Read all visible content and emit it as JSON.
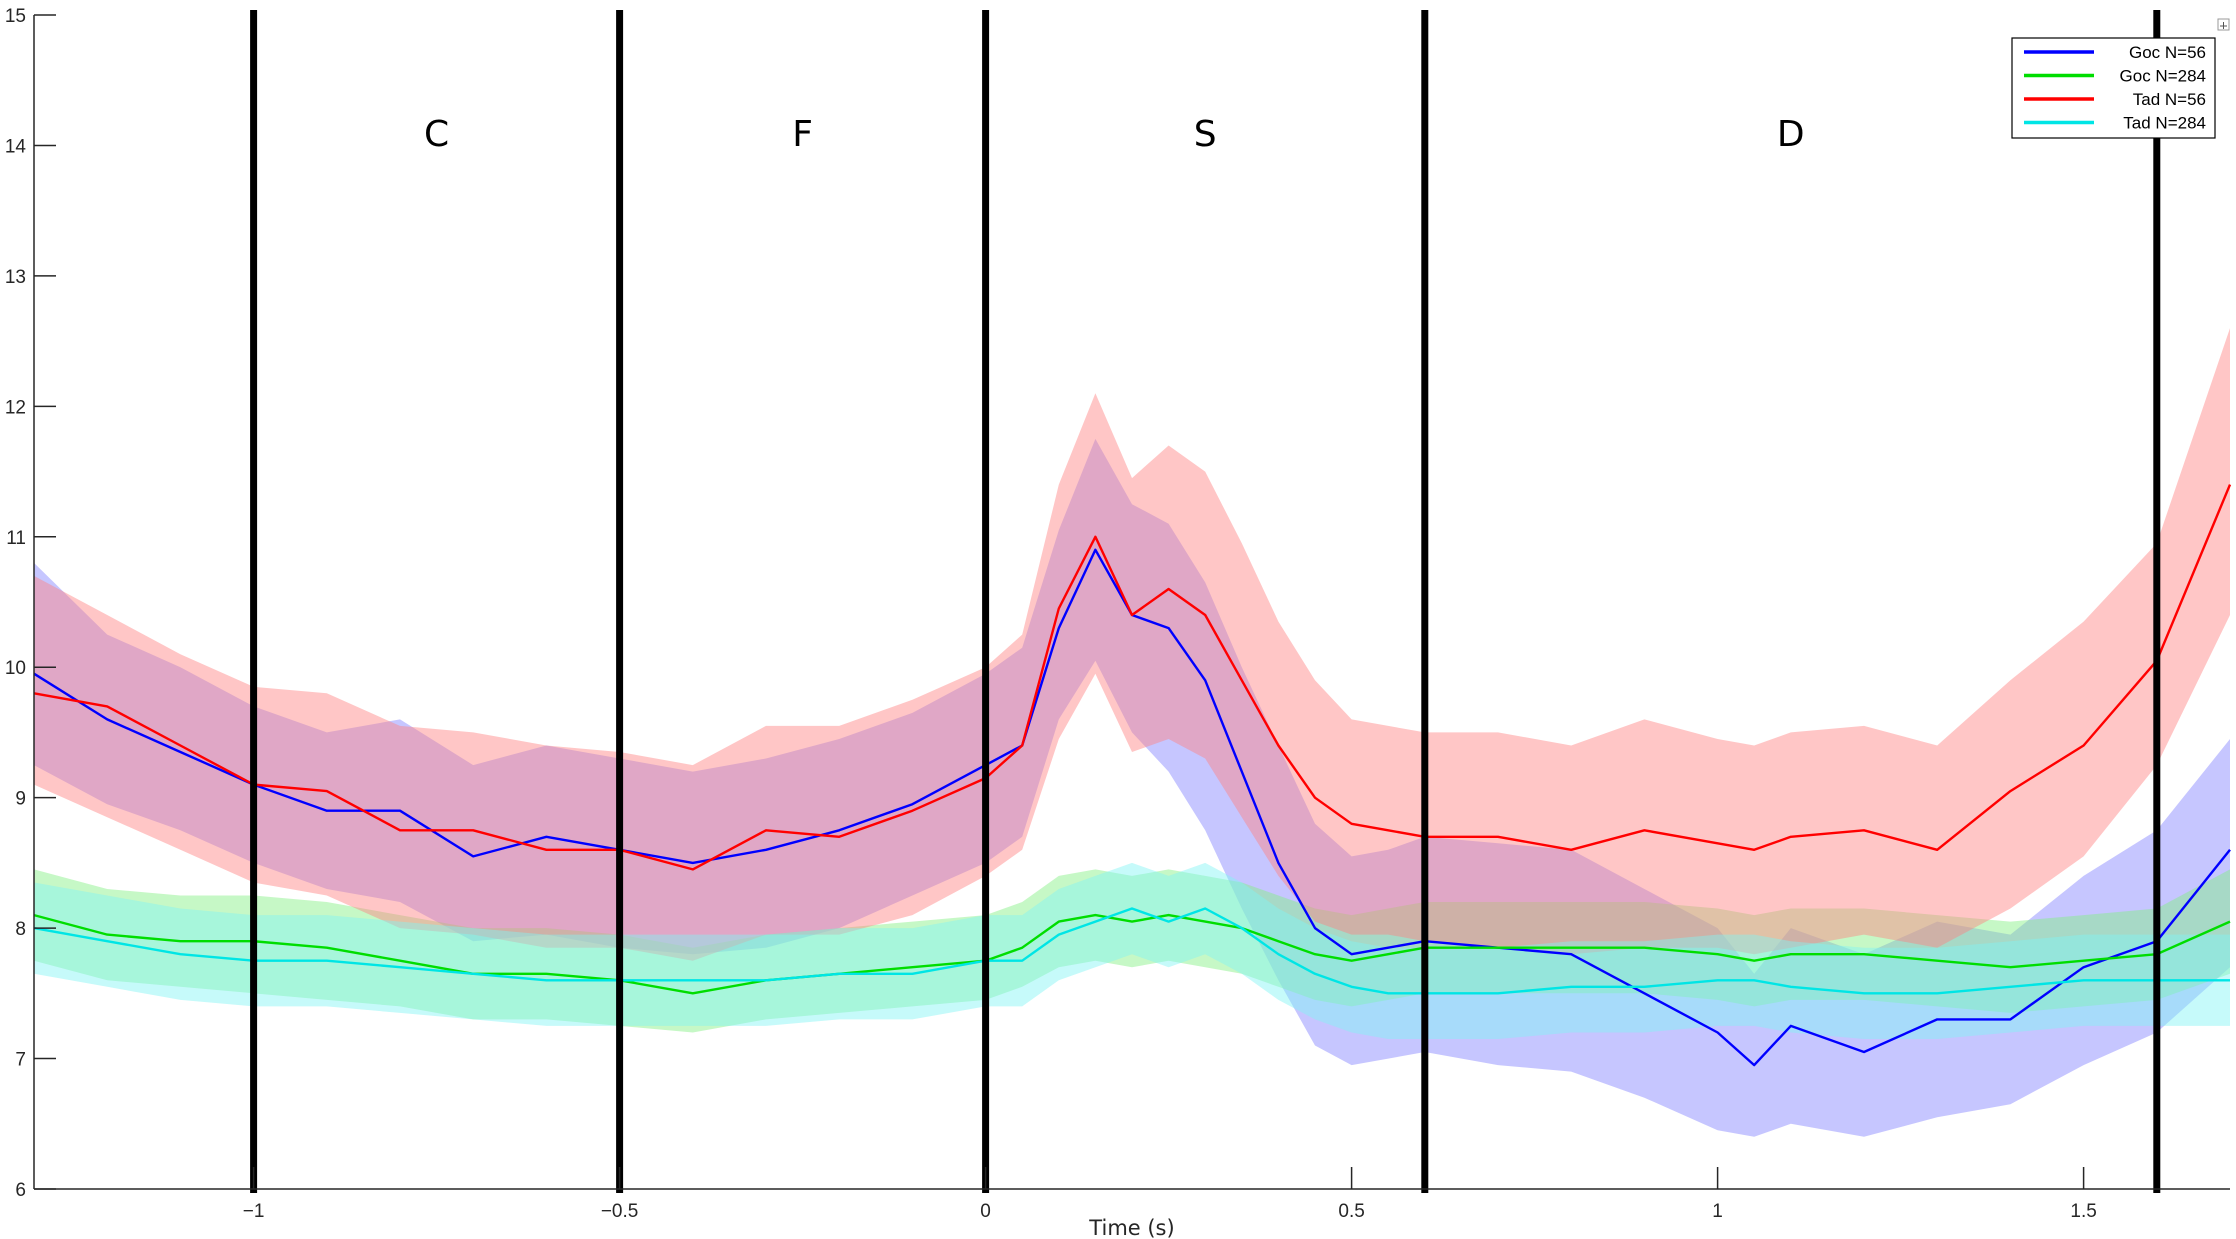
{
  "chart_data": {
    "type": "line",
    "title": "",
    "xlabel": "Time (s)",
    "ylabel": "",
    "xlim": [
      -1.3,
      1.7
    ],
    "ylim": [
      6,
      15
    ],
    "xticks": [
      -1,
      -0.5,
      0,
      0.5,
      1,
      1.5
    ],
    "xtick_labels": [
      "−1",
      "−0.5",
      "0",
      "0.5",
      "1",
      "1.5"
    ],
    "yticks": [
      6,
      7,
      8,
      9,
      10,
      11,
      12,
      13,
      14,
      15
    ],
    "ytick_labels": [
      "6",
      "7",
      "8",
      "9",
      "10",
      "11",
      "12",
      "13",
      "14",
      "15"
    ],
    "grid": false,
    "legend_position": "top-right",
    "phase_boundaries": [
      -1,
      -0.5,
      0,
      0.6,
      1.6
    ],
    "phases": [
      {
        "label": "C",
        "x": -0.75
      },
      {
        "label": "F",
        "x": -0.25
      },
      {
        "label": "S",
        "x": 0.3
      },
      {
        "label": "D",
        "x": 1.1
      }
    ],
    "x": [
      -1.3,
      -1.2,
      -1.1,
      -1.0,
      -0.9,
      -0.8,
      -0.7,
      -0.6,
      -0.5,
      -0.4,
      -0.3,
      -0.2,
      -0.1,
      0.0,
      0.05,
      0.1,
      0.15,
      0.2,
      0.25,
      0.3,
      0.35,
      0.4,
      0.45,
      0.5,
      0.55,
      0.6,
      0.7,
      0.8,
      0.9,
      1.0,
      1.05,
      1.1,
      1.2,
      1.3,
      1.4,
      1.5,
      1.6,
      1.7
    ],
    "series": [
      {
        "name": "Goc N=56",
        "color": "#0000ff",
        "band_color": "#8080ff",
        "values": [
          9.95,
          9.6,
          9.35,
          9.1,
          8.9,
          8.9,
          8.55,
          8.7,
          8.6,
          8.5,
          8.6,
          8.75,
          8.95,
          9.25,
          9.4,
          10.3,
          10.9,
          10.4,
          10.3,
          9.9,
          9.2,
          8.5,
          8.0,
          7.8,
          7.85,
          7.9,
          7.85,
          7.8,
          7.5,
          7.2,
          6.95,
          7.25,
          7.05,
          7.3,
          7.3,
          7.7,
          7.9,
          8.6
        ],
        "lower": [
          9.25,
          8.95,
          8.75,
          8.5,
          8.3,
          8.2,
          7.9,
          7.95,
          7.85,
          7.8,
          7.85,
          8.0,
          8.25,
          8.5,
          8.7,
          9.6,
          10.05,
          9.5,
          9.2,
          8.75,
          8.15,
          7.6,
          7.1,
          6.95,
          7.0,
          7.05,
          6.95,
          6.9,
          6.7,
          6.45,
          6.4,
          6.5,
          6.4,
          6.55,
          6.65,
          6.95,
          7.2,
          7.7
        ],
        "upper": [
          10.8,
          10.25,
          10.0,
          9.7,
          9.5,
          9.6,
          9.25,
          9.4,
          9.3,
          9.2,
          9.3,
          9.45,
          9.65,
          9.95,
          10.15,
          11.05,
          11.75,
          11.25,
          11.1,
          10.65,
          10.0,
          9.4,
          8.8,
          8.55,
          8.6,
          8.7,
          8.65,
          8.6,
          8.3,
          8.0,
          7.65,
          8.0,
          7.8,
          8.05,
          7.95,
          8.4,
          8.75,
          9.45
        ]
      },
      {
        "name": "Goc N=284",
        "color": "#00dd00",
        "band_color": "#80f080",
        "values": [
          8.1,
          7.95,
          7.9,
          7.9,
          7.85,
          7.75,
          7.65,
          7.65,
          7.6,
          7.5,
          7.6,
          7.65,
          7.7,
          7.75,
          7.85,
          8.05,
          8.1,
          8.05,
          8.1,
          8.05,
          8.0,
          7.9,
          7.8,
          7.75,
          7.8,
          7.85,
          7.85,
          7.85,
          7.85,
          7.8,
          7.75,
          7.8,
          7.8,
          7.75,
          7.7,
          7.75,
          7.8,
          8.05
        ],
        "lower": [
          7.75,
          7.6,
          7.55,
          7.5,
          7.45,
          7.4,
          7.3,
          7.3,
          7.25,
          7.2,
          7.3,
          7.35,
          7.4,
          7.45,
          7.55,
          7.7,
          7.75,
          7.7,
          7.75,
          7.7,
          7.65,
          7.55,
          7.45,
          7.4,
          7.45,
          7.5,
          7.5,
          7.5,
          7.5,
          7.45,
          7.4,
          7.45,
          7.45,
          7.4,
          7.35,
          7.4,
          7.45,
          7.65
        ],
        "upper": [
          8.45,
          8.3,
          8.25,
          8.25,
          8.2,
          8.1,
          8.0,
          8.0,
          7.95,
          7.85,
          7.95,
          8.0,
          8.05,
          8.1,
          8.2,
          8.4,
          8.45,
          8.4,
          8.45,
          8.4,
          8.35,
          8.25,
          8.15,
          8.1,
          8.15,
          8.2,
          8.2,
          8.2,
          8.2,
          8.15,
          8.1,
          8.15,
          8.15,
          8.1,
          8.05,
          8.1,
          8.15,
          8.45
        ]
      },
      {
        "name": "Tad N=56",
        "color": "#ff0000",
        "band_color": "#ff8080",
        "values": [
          9.8,
          9.7,
          9.4,
          9.1,
          9.05,
          8.75,
          8.75,
          8.6,
          8.6,
          8.45,
          8.75,
          8.7,
          8.9,
          9.15,
          9.4,
          10.45,
          11.0,
          10.4,
          10.6,
          10.4,
          9.9,
          9.4,
          9.0,
          8.8,
          8.75,
          8.7,
          8.7,
          8.6,
          8.75,
          8.65,
          8.6,
          8.7,
          8.75,
          8.6,
          9.05,
          9.4,
          10.05,
          11.4
        ],
        "lower": [
          9.1,
          8.85,
          8.6,
          8.35,
          8.25,
          8.0,
          7.95,
          7.85,
          7.85,
          7.75,
          7.95,
          7.95,
          8.1,
          8.4,
          8.6,
          9.45,
          9.95,
          9.35,
          9.45,
          9.3,
          8.85,
          8.4,
          8.05,
          7.95,
          7.95,
          7.9,
          7.85,
          7.8,
          7.85,
          7.85,
          7.8,
          7.85,
          7.95,
          7.85,
          8.15,
          8.55,
          9.25,
          10.4
        ],
        "upper": [
          10.7,
          10.4,
          10.1,
          9.85,
          9.8,
          9.55,
          9.5,
          9.4,
          9.35,
          9.25,
          9.55,
          9.55,
          9.75,
          10.0,
          10.25,
          11.4,
          12.1,
          11.45,
          11.7,
          11.5,
          10.95,
          10.35,
          9.9,
          9.6,
          9.55,
          9.5,
          9.5,
          9.4,
          9.6,
          9.45,
          9.4,
          9.5,
          9.55,
          9.4,
          9.9,
          10.35,
          10.95,
          12.6
        ]
      },
      {
        "name": "Tad N=284",
        "color": "#00e5e5",
        "band_color": "#80f5f5",
        "values": [
          8.0,
          7.9,
          7.8,
          7.75,
          7.75,
          7.7,
          7.65,
          7.6,
          7.6,
          7.6,
          7.6,
          7.65,
          7.65,
          7.75,
          7.75,
          7.95,
          8.05,
          8.15,
          8.05,
          8.15,
          8.0,
          7.8,
          7.65,
          7.55,
          7.5,
          7.5,
          7.5,
          7.55,
          7.55,
          7.6,
          7.6,
          7.55,
          7.5,
          7.5,
          7.55,
          7.6,
          7.6,
          7.6
        ],
        "lower": [
          7.65,
          7.55,
          7.45,
          7.4,
          7.4,
          7.35,
          7.3,
          7.25,
          7.25,
          7.25,
          7.25,
          7.3,
          7.3,
          7.4,
          7.4,
          7.6,
          7.7,
          7.8,
          7.7,
          7.8,
          7.65,
          7.45,
          7.3,
          7.2,
          7.15,
          7.15,
          7.15,
          7.2,
          7.2,
          7.25,
          7.25,
          7.2,
          7.15,
          7.15,
          7.2,
          7.25,
          7.25,
          7.25
        ],
        "upper": [
          8.35,
          8.25,
          8.15,
          8.1,
          8.1,
          8.05,
          8.0,
          7.95,
          7.95,
          7.95,
          7.95,
          8.0,
          8.0,
          8.1,
          8.1,
          8.3,
          8.4,
          8.5,
          8.4,
          8.5,
          8.35,
          8.15,
          8.0,
          7.9,
          7.85,
          7.85,
          7.85,
          7.9,
          7.9,
          7.95,
          7.95,
          7.9,
          7.85,
          7.85,
          7.9,
          7.95,
          7.95,
          7.95
        ]
      }
    ]
  }
}
